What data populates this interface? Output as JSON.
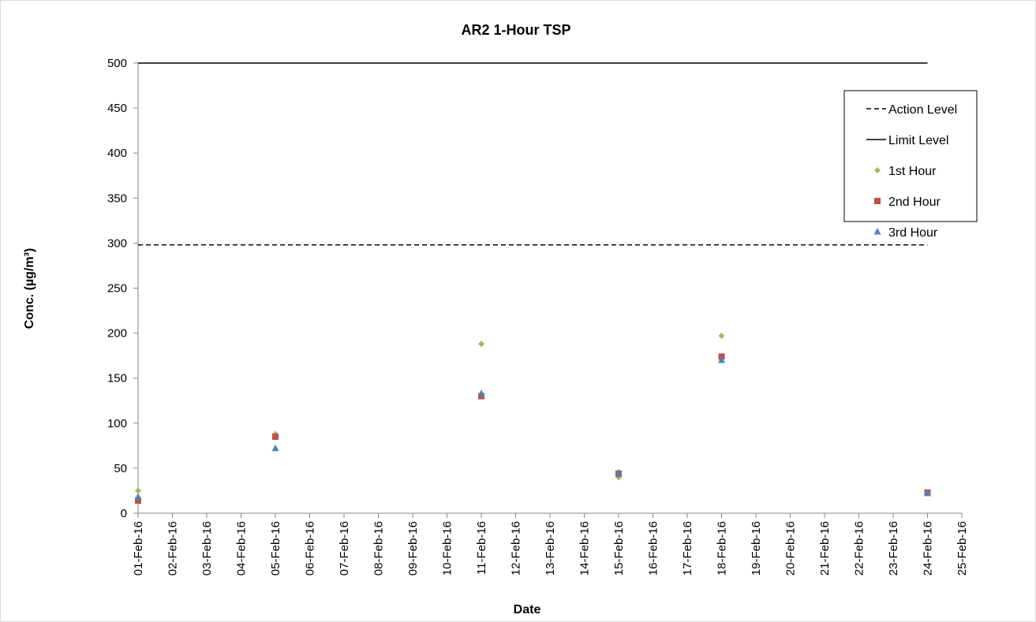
{
  "chart_data": {
    "type": "scatter",
    "title": "AR2 1-Hour TSP",
    "xlabel": "Date",
    "ylabel": "Conc. (µg/m³)",
    "ylim": [
      0,
      500
    ],
    "yticks": [
      0,
      50,
      100,
      150,
      200,
      250,
      300,
      350,
      400,
      450,
      500
    ],
    "x_categories": [
      "01-Feb-16",
      "02-Feb-16",
      "03-Feb-16",
      "04-Feb-16",
      "05-Feb-16",
      "06-Feb-16",
      "07-Feb-16",
      "08-Feb-16",
      "09-Feb-16",
      "10-Feb-16",
      "11-Feb-16",
      "12-Feb-16",
      "13-Feb-16",
      "14-Feb-16",
      "15-Feb-16",
      "16-Feb-16",
      "17-Feb-16",
      "18-Feb-16",
      "19-Feb-16",
      "20-Feb-16",
      "21-Feb-16",
      "22-Feb-16",
      "23-Feb-16",
      "24-Feb-16",
      "25-Feb-16"
    ],
    "grid": false,
    "legend_position": "top-right",
    "reference_lines": [
      {
        "name": "Action Level",
        "value": 298,
        "style": "dashed",
        "color": "#000000",
        "x_start": "01-Feb-16",
        "x_end": "24-Feb-16"
      },
      {
        "name": "Limit Level",
        "value": 500,
        "style": "solid",
        "color": "#000000",
        "x_start": "01-Feb-16",
        "x_end": "24-Feb-16"
      }
    ],
    "series": [
      {
        "name": "1st Hour",
        "marker": "diamond",
        "color": "#9BBB59",
        "points": [
          {
            "x": "01-Feb-16",
            "y": 25
          },
          {
            "x": "05-Feb-16",
            "y": 88
          },
          {
            "x": "11-Feb-16",
            "y": 188
          },
          {
            "x": "15-Feb-16",
            "y": 40
          },
          {
            "x": "18-Feb-16",
            "y": 197
          },
          {
            "x": "24-Feb-16",
            "y": 22
          }
        ]
      },
      {
        "name": "2nd Hour",
        "marker": "square",
        "color": "#C0504D",
        "points": [
          {
            "x": "01-Feb-16",
            "y": 14
          },
          {
            "x": "05-Feb-16",
            "y": 85
          },
          {
            "x": "11-Feb-16",
            "y": 130
          },
          {
            "x": "15-Feb-16",
            "y": 44
          },
          {
            "x": "18-Feb-16",
            "y": 174
          },
          {
            "x": "24-Feb-16",
            "y": 23
          }
        ]
      },
      {
        "name": "3rd Hour",
        "marker": "triangle",
        "color": "#4F81BD",
        "points": [
          {
            "x": "01-Feb-16",
            "y": 18
          },
          {
            "x": "05-Feb-16",
            "y": 72
          },
          {
            "x": "11-Feb-16",
            "y": 133
          },
          {
            "x": "15-Feb-16",
            "y": 45
          },
          {
            "x": "18-Feb-16",
            "y": 170
          },
          {
            "x": "24-Feb-16",
            "y": 22
          }
        ]
      }
    ]
  }
}
